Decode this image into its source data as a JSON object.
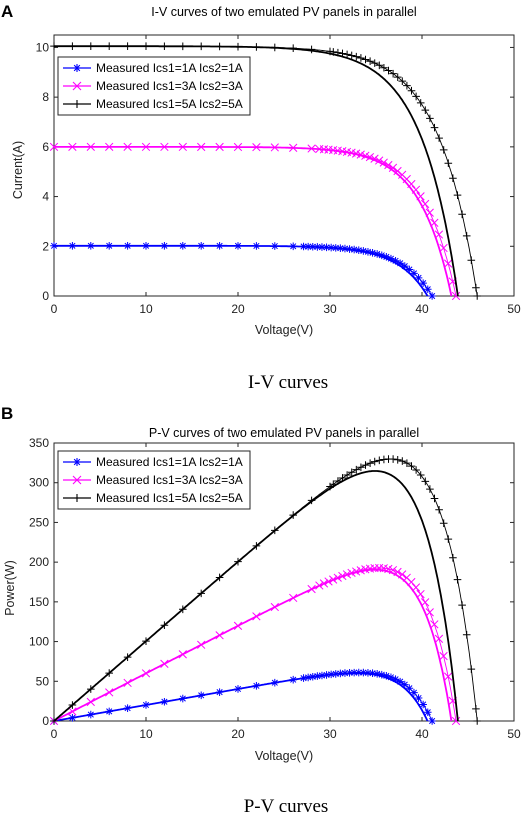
{
  "panels": [
    {
      "letter": "A",
      "caption": "I-V curves",
      "chart_data": {
        "type": "line",
        "title": "I-V curves of two emulated PV panels in parallel",
        "xlabel": "Voltage(V)",
        "ylabel": "Current(A)",
        "xlim": [
          0,
          50
        ],
        "ylim": [
          0,
          10.5
        ],
        "xticks": [
          0,
          10,
          20,
          30,
          40,
          50
        ],
        "yticks": [
          0,
          2,
          4,
          6,
          8,
          10
        ],
        "grid": false,
        "legend_position": "top-left",
        "series": [
          {
            "name": "Measured Ics1=1A Ics2=1A",
            "color": "#0000ff",
            "marker": "asterisk",
            "isc": 2.02,
            "voc_model": 40.6,
            "voc_measured": 41.1,
            "knee": 0.08
          },
          {
            "name": "Measured Ics1=3A Ics2=3A",
            "color": "#ff00ff",
            "marker": "cross",
            "isc": 6.0,
            "voc_model": 43.2,
            "voc_measured": 43.7,
            "knee": 0.08
          },
          {
            "name": "Measured Ics1=5A Ics2=5A",
            "color": "#000000",
            "marker": "plus",
            "isc": 10.05,
            "voc_model": 43.9,
            "voc_measured": 46.0,
            "knee": 0.09
          }
        ]
      }
    },
    {
      "letter": "B",
      "caption": "P-V curves",
      "chart_data": {
        "type": "line",
        "title": "P-V curves of two emulated PV panels in parallel",
        "xlabel": "Voltage(V)",
        "ylabel": "Power(W)",
        "xlim": [
          0,
          50
        ],
        "ylim": [
          0,
          350
        ],
        "xticks": [
          0,
          10,
          20,
          30,
          40,
          50
        ],
        "yticks": [
          0,
          50,
          100,
          150,
          200,
          250,
          300,
          350
        ],
        "grid": false,
        "legend_position": "top-left",
        "series": [
          {
            "name": "Measured Ics1=1A Ics2=1A",
            "color": "#0000ff",
            "marker": "asterisk",
            "isc": 2.02,
            "voc_model": 40.6,
            "voc_measured": 41.1,
            "knee": 0.08,
            "peak_power": 66
          },
          {
            "name": "Measured Ics1=3A Ics2=3A",
            "color": "#ff00ff",
            "marker": "cross",
            "isc": 6.0,
            "voc_model": 43.2,
            "voc_measured": 43.7,
            "knee": 0.08,
            "peak_power": 200
          },
          {
            "name": "Measured Ics1=5A Ics2=5A",
            "color": "#000000",
            "marker": "plus",
            "isc": 10.05,
            "voc_model": 43.9,
            "voc_measured": 46.0,
            "knee": 0.09,
            "peak_power": 343
          }
        ]
      }
    }
  ]
}
